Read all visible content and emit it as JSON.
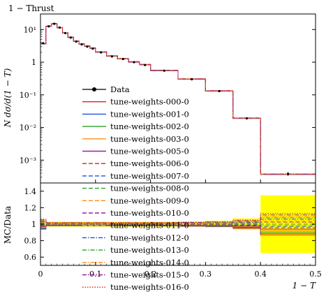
{
  "chart_data": [
    {
      "type": "line",
      "title": "1 − Thrust",
      "xlabel": "1 − T",
      "ylabel": "N dσ/d(1 − T)",
      "xlim": [
        0,
        0.5
      ],
      "ylim": [
        0.0002,
        30
      ],
      "yscale": "log",
      "x_ticks": [
        "0",
        "0.1",
        "0.2",
        "0.3",
        "0.4",
        "0.5"
      ],
      "y_ticks": [
        {
          "value": 10,
          "label": "10¹"
        },
        {
          "value": 1,
          "label": "1"
        },
        {
          "value": 0.1,
          "label": "10⁻¹"
        },
        {
          "value": 0.01,
          "label": "10⁻²"
        },
        {
          "value": 0.001,
          "label": "10⁻³"
        }
      ],
      "bin_edges": [
        0,
        0.01,
        0.02,
        0.03,
        0.04,
        0.05,
        0.06,
        0.07,
        0.08,
        0.09,
        0.1,
        0.12,
        0.14,
        0.16,
        0.18,
        0.2,
        0.25,
        0.3,
        0.35,
        0.4,
        0.5
      ],
      "data": {
        "name": "Data",
        "values": [
          3.8,
          12.5,
          15.0,
          11.5,
          7.8,
          5.7,
          4.3,
          3.5,
          3.0,
          2.6,
          2.0,
          1.5,
          1.25,
          1.0,
          0.82,
          0.55,
          0.3,
          0.13,
          0.019,
          0.00038
        ],
        "errors": [
          0.2,
          0.5,
          0.5,
          0.4,
          0.3,
          0.2,
          0.15,
          0.12,
          0.1,
          0.08,
          0.06,
          0.05,
          0.04,
          0.03,
          0.03,
          0.02,
          0.01,
          0.005,
          0.001,
          5e-05
        ]
      },
      "mc_values": [
        3.7,
        12.8,
        15.2,
        11.4,
        7.9,
        5.8,
        4.4,
        3.6,
        3.1,
        2.7,
        2.05,
        1.55,
        1.28,
        1.02,
        0.84,
        0.56,
        0.305,
        0.132,
        0.0193,
        0.00037
      ],
      "series": [
        {
          "name": "tune-weights-000-0",
          "color": "#e41a1c",
          "style": "solid"
        },
        {
          "name": "tune-weights-001-0",
          "color": "#1f4fe0",
          "style": "solid"
        },
        {
          "name": "tune-weights-002-0",
          "color": "#2ca02c",
          "style": "solid"
        },
        {
          "name": "tune-weights-003-0",
          "color": "#ff8c1a",
          "style": "solid"
        },
        {
          "name": "tune-weights-005-0",
          "color": "#9b1fa0",
          "style": "solid"
        },
        {
          "name": "tune-weights-006-0",
          "color": "#e41a1c",
          "style": "dashed"
        },
        {
          "name": "tune-weights-007-0",
          "color": "#1f4fe0",
          "style": "dashed"
        },
        {
          "name": "tune-weights-008-0",
          "color": "#2ca02c",
          "style": "dashed"
        },
        {
          "name": "tune-weights-009-0",
          "color": "#ff8c1a",
          "style": "dashed"
        },
        {
          "name": "tune-weights-010-0",
          "color": "#9b1fa0",
          "style": "dashed"
        },
        {
          "name": "tune-weights-011-0",
          "color": "#ffb000",
          "style": "dashed"
        },
        {
          "name": "tune-weights-012-0",
          "color": "#1f4fe0",
          "style": "dashdot"
        },
        {
          "name": "tune-weights-013-0",
          "color": "#2ca02c",
          "style": "dashdot"
        },
        {
          "name": "tune-weights-014-0",
          "color": "#ff8c1a",
          "style": "dashdot"
        },
        {
          "name": "tune-weights-015-0",
          "color": "#9b1fa0",
          "style": "dashdot"
        },
        {
          "name": "tune-weights-016-0",
          "color": "#e41a1c",
          "style": "dotted"
        }
      ]
    },
    {
      "type": "line",
      "ylabel": "MC/Data",
      "xlabel": "1 − T",
      "xlim": [
        0,
        0.5
      ],
      "ylim": [
        0.5,
        1.5
      ],
      "y_ticks": [
        "0.6",
        "0.8",
        "1",
        "1.2",
        "1.4"
      ],
      "x_ticks": [
        "0",
        "0.1",
        "0.2",
        "0.3",
        "0.4",
        "0.5"
      ],
      "band_color": "#ffff00",
      "band_half_width": [
        0.05,
        0.03,
        0.03,
        0.03,
        0.03,
        0.03,
        0.03,
        0.03,
        0.03,
        0.03,
        0.03,
        0.03,
        0.03,
        0.03,
        0.03,
        0.03,
        0.03,
        0.04,
        0.07,
        0.35
      ],
      "ratio_spread": [
        0.06,
        0.02,
        0.02,
        0.02,
        0.02,
        0.02,
        0.02,
        0.02,
        0.02,
        0.02,
        0.02,
        0.02,
        0.02,
        0.02,
        0.02,
        0.02,
        0.025,
        0.03,
        0.05,
        0.13
      ]
    }
  ]
}
